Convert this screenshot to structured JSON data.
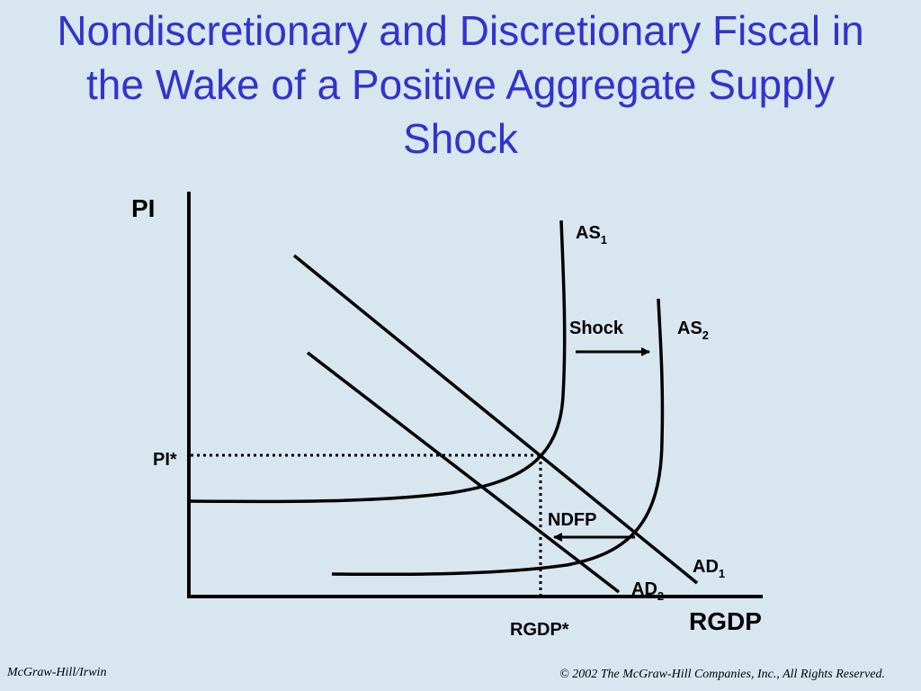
{
  "title": {
    "line1": "Nondiscretionary and Discretionary Fiscal in",
    "line2": "the Wake of a Positive Aggregate Supply",
    "line3": "Shock"
  },
  "diagram": {
    "y_axis_label": "PI",
    "x_axis_label": "RGDP",
    "pi_star_label": "PI*",
    "rgdp_star_label": "RGDP*",
    "as1_label": "AS",
    "as1_sub": "1",
    "as2_label": "AS",
    "as2_sub": "2",
    "ad1_label": "AD",
    "ad1_sub": "1",
    "ad2_label": "AD",
    "ad2_sub": "2",
    "shock_label": "Shock",
    "ndfp_label": "NDFP"
  },
  "footer": {
    "left": "McGraw-Hill/Irwin",
    "right": "© 2002 The McGraw-Hill Companies, Inc., All Rights Reserved."
  }
}
